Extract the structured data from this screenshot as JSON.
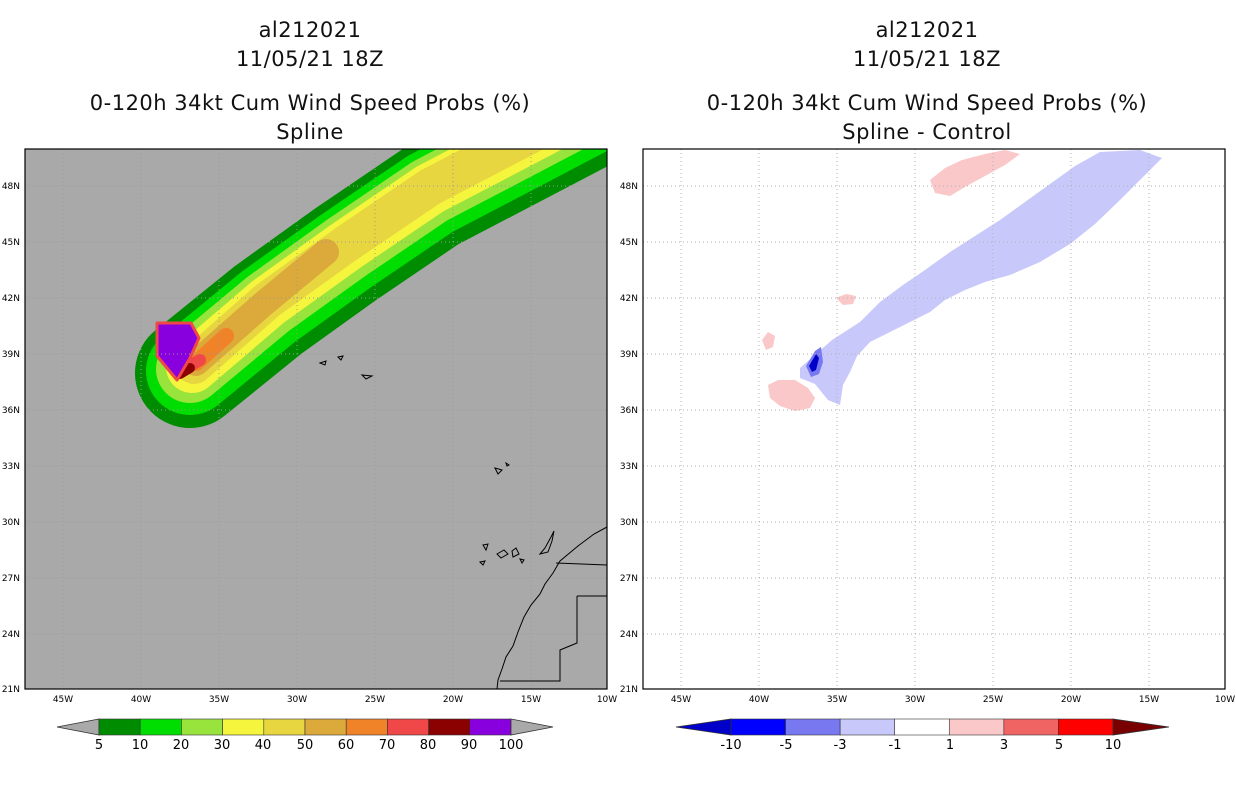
{
  "left_panel": {
    "storm_id": "al212021",
    "datetime": "11/05/21 18Z",
    "product": "0-120h 34kt Cum Wind Speed Probs (%)",
    "subtitle": "Spline",
    "background_color": "#a9a9a9",
    "colorbar": {
      "labels": [
        "5",
        "10",
        "20",
        "30",
        "40",
        "50",
        "60",
        "70",
        "80",
        "90",
        "100"
      ],
      "colors": [
        "#008c00",
        "#00dd00",
        "#99e33d",
        "#f5f53d",
        "#e8d640",
        "#dcaa3a",
        "#f08228",
        "#f04848",
        "#8b0000",
        "#8800dd"
      ]
    }
  },
  "right_panel": {
    "storm_id": "al212021",
    "datetime": "11/05/21 18Z",
    "product": "0-120h 34kt Cum Wind Speed Probs (%)",
    "subtitle": "Spline - Control",
    "colorbar": {
      "labels": [
        "-10",
        "-5",
        "-3",
        "-1",
        "1",
        "3",
        "5",
        "10"
      ],
      "colors": [
        "#0000c8",
        "#0000ff",
        "#7878f0",
        "#c8c8fa",
        "#ffffff",
        "#fac8c8",
        "#f06464",
        "#ff0000",
        "#780000"
      ]
    }
  },
  "axes": {
    "lat_labels": [
      "48N",
      "45N",
      "42N",
      "39N",
      "36N",
      "33N",
      "30N",
      "27N",
      "24N",
      "21N"
    ],
    "lon_labels": [
      "45W",
      "40W",
      "35W",
      "30W",
      "25W",
      "20W",
      "15W",
      "10W"
    ]
  },
  "chart_data": {
    "type": "heatmap",
    "lon_range": [
      -47.5,
      -10
    ],
    "lat_range": [
      21,
      50
    ],
    "storm_center_approx": {
      "lat": 39,
      "lon": -37
    },
    "track_direction": "northeast",
    "left_contour_levels": [
      5,
      10,
      20,
      30,
      40,
      50,
      60,
      70,
      80,
      90,
      100
    ],
    "right_contour_levels": [
      -10,
      -5,
      -3,
      -1,
      1,
      3,
      5,
      10
    ]
  }
}
